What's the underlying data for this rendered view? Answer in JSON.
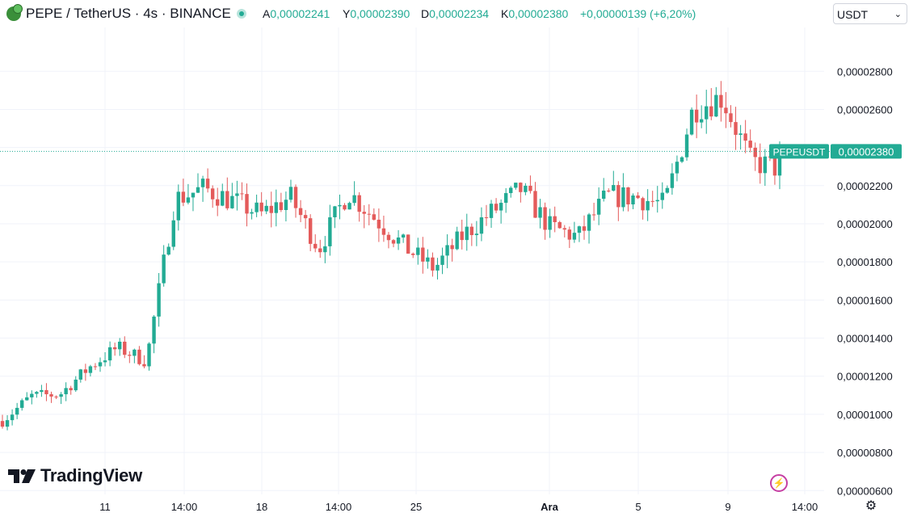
{
  "header": {
    "symbol": "PEPE / TetherUS · 4s · BINANCE",
    "ohlc": {
      "open_key": "A",
      "open": "0,00002241",
      "high_key": "Y",
      "high": "0,00002390",
      "low_key": "D",
      "low": "0,00002234",
      "close_key": "K",
      "close": "0,00002380",
      "change": "+0,00000139 (+6,20%)"
    },
    "currency": "USDT"
  },
  "branding": {
    "name": "TradingView"
  },
  "colors": {
    "up": "#22ab94",
    "down": "#e45b5b",
    "grid": "#f0f3fa",
    "text": "#131722"
  },
  "chart_data": {
    "type": "candlestick",
    "symbol_label": "PEPEUSDT",
    "last_price_label": "0,00002380",
    "last_price": 2.38e-05,
    "ylim": [
      5.8e-06,
      3.03e-05
    ],
    "y_ticks": [
      {
        "value": 2.8e-05,
        "label": "0,00002800"
      },
      {
        "value": 2.6e-05,
        "label": "0,00002600"
      },
      {
        "value": 2.4e-05,
        "label": "0,00002400"
      },
      {
        "value": 2.2e-05,
        "label": "0,00002200"
      },
      {
        "value": 2e-05,
        "label": "0,00002000"
      },
      {
        "value": 1.8e-05,
        "label": "0,00001800"
      },
      {
        "value": 1.6e-05,
        "label": "0,00001600"
      },
      {
        "value": 1.4e-05,
        "label": "0,00001400"
      },
      {
        "value": 1.2e-05,
        "label": "0,00001200"
      },
      {
        "value": 1e-05,
        "label": "0,00001000"
      },
      {
        "value": 8e-06,
        "label": "0,00000800"
      },
      {
        "value": 6e-06,
        "label": "0,00000600"
      }
    ],
    "x_ticks": [
      {
        "label": "11",
        "bold": false
      },
      {
        "label": "14:00",
        "bold": false
      },
      {
        "label": "18",
        "bold": false
      },
      {
        "label": "14:00",
        "bold": false
      },
      {
        "label": "25",
        "bold": false
      },
      {
        "label": "Ara",
        "bold": true
      },
      {
        "label": "5",
        "bold": false
      },
      {
        "label": "9",
        "bold": false
      },
      {
        "label": "14:00",
        "bold": false
      }
    ],
    "waypoints": [
      [
        9.3e-06,
        1e-05
      ],
      [
        1.1e-05,
        1.09e-05
      ],
      [
        1.07e-05,
        1.14e-05
      ],
      [
        1.25e-05,
        1.24e-05
      ],
      [
        1.32e-05,
        1.38e-05
      ],
      [
        1.28e-05,
        1.28e-05
      ],
      [
        1.9e-05,
        2.36e-05
      ],
      [
        2.12e-05,
        2.25e-05
      ],
      [
        2.12e-05,
        2.12e-05
      ],
      [
        2.05e-05,
        2.05e-05
      ],
      [
        2.1e-05,
        2.18e-05
      ],
      [
        1.92e-05,
        1.82e-05
      ],
      [
        2.12e-05,
        2.22e-05
      ],
      [
        2.06e-05,
        1.98e-05
      ],
      [
        1.9e-05,
        1.85e-05
      ],
      [
        1.78e-05,
        1.75e-05
      ],
      [
        1.9e-05,
        1.98e-05
      ],
      [
        2.02e-05,
        2.1e-05
      ],
      [
        2.08e-05,
        2.28e-05
      ],
      [
        2.03e-05,
        1.94e-05
      ],
      [
        1.88e-05,
        1.98e-05
      ],
      [
        2.09e-05,
        2.2e-05
      ],
      [
        2.16e-05,
        2.12e-05
      ],
      [
        2.1e-05,
        2.1e-05
      ],
      [
        2.63e-05,
        2.58e-05
      ],
      [
        2.68e-05,
        2.65e-05
      ],
      [
        2.35e-05,
        2.3e-05
      ],
      [
        2.2e-05,
        2.38e-05
      ]
    ]
  }
}
